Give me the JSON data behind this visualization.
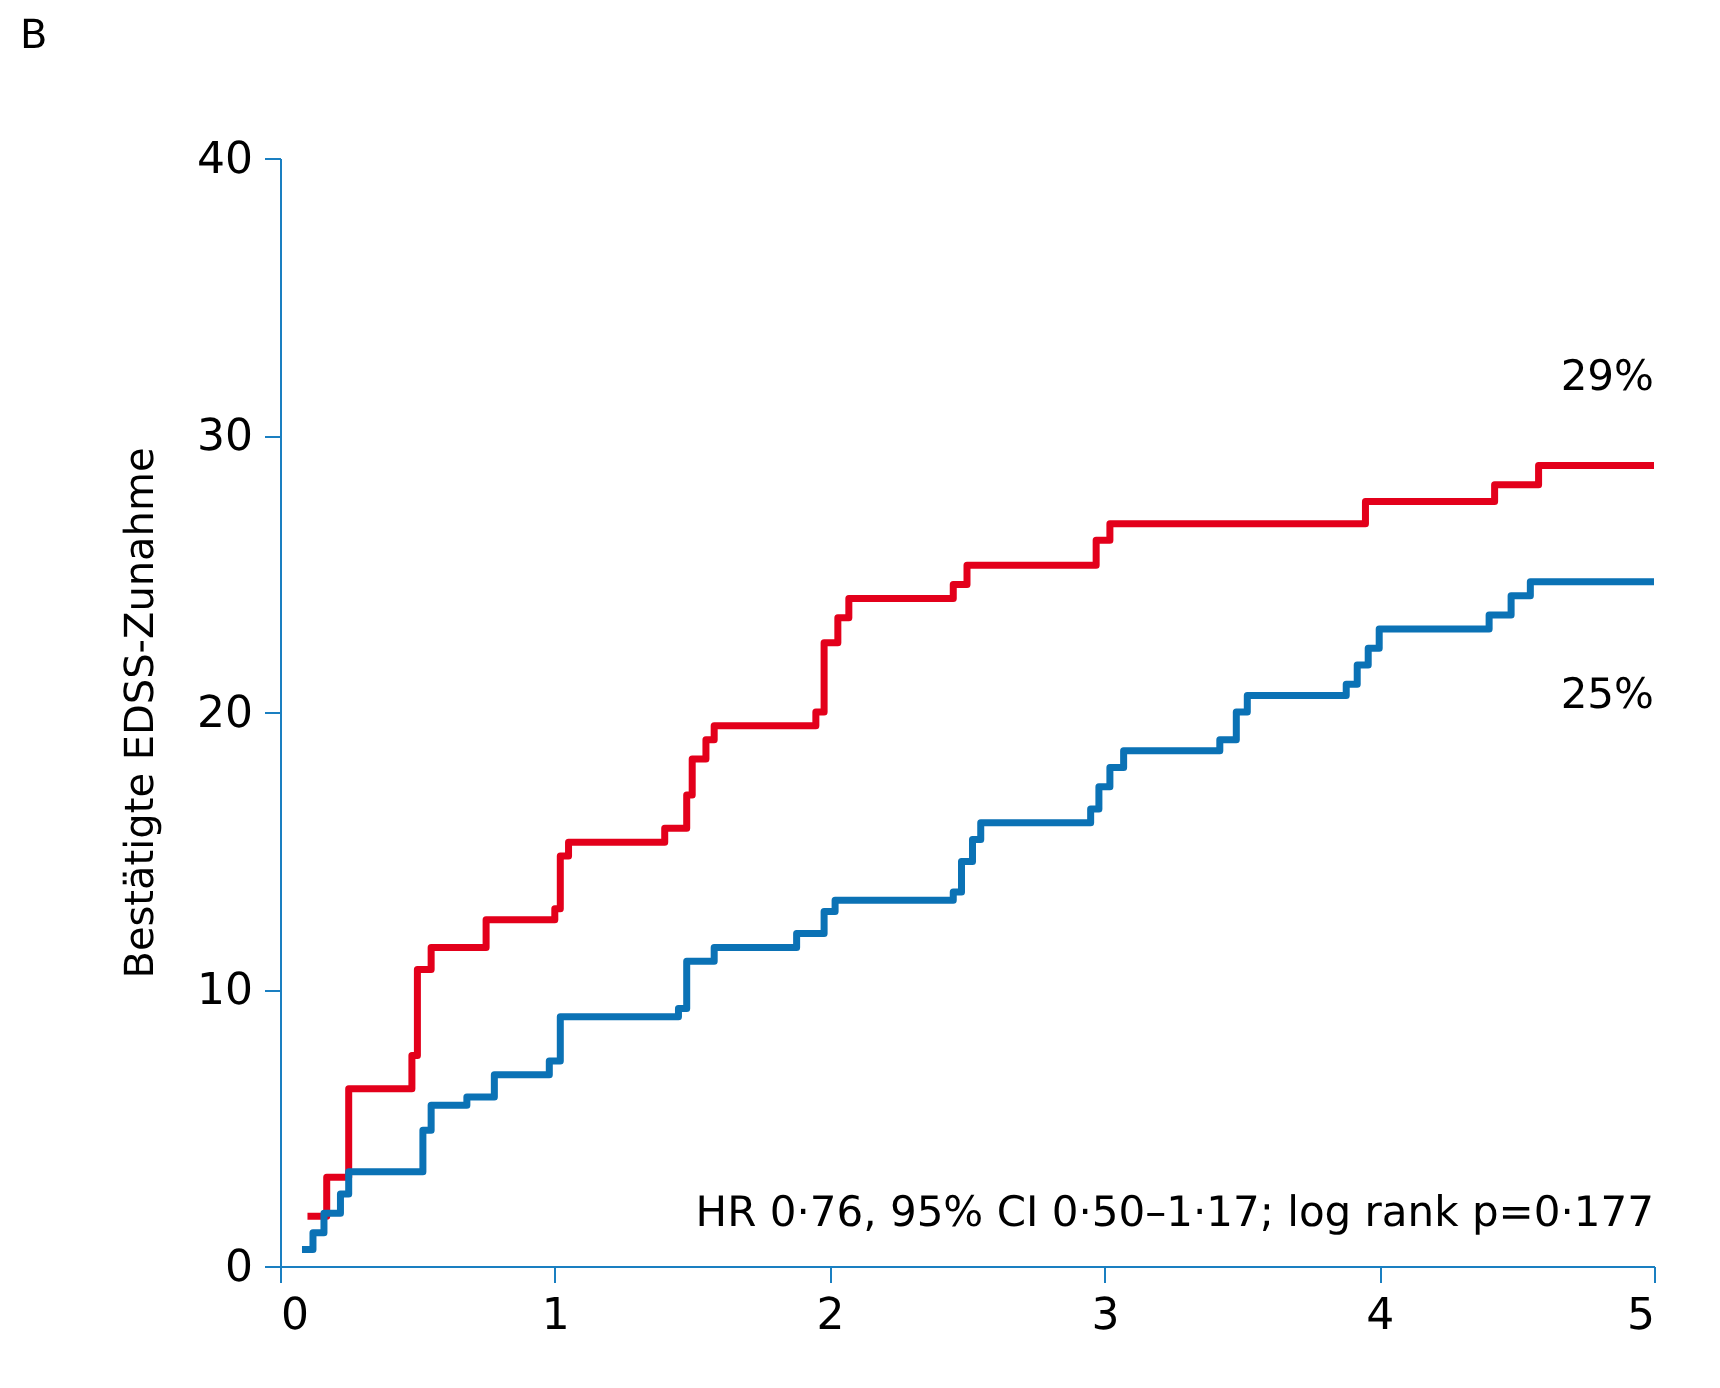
{
  "chart_data": {
    "type": "step",
    "title": "B",
    "ylabel": "Bestätigte EDSS-Zunahme",
    "xlim": [
      0,
      5
    ],
    "xticks": [
      0,
      1,
      2,
      3,
      4,
      5
    ],
    "ylim": [
      0,
      40
    ],
    "yticks": [
      0,
      10,
      20,
      30,
      40
    ],
    "grid": false,
    "line_style": "solid",
    "marker": "none",
    "series": [
      {
        "color": "#e3001b",
        "x": [
          0.1,
          0.17,
          0.25,
          0.48,
          0.5,
          0.55,
          0.7,
          0.75,
          1.0,
          1.02,
          1.05,
          1.4,
          1.48,
          1.5,
          1.55,
          1.58,
          1.95,
          1.98,
          2.03,
          2.07,
          2.45,
          2.5,
          2.97,
          3.02,
          3.95,
          4.42,
          4.58,
          5.0
        ],
        "values": [
          1.8,
          3.2,
          6.4,
          7.6,
          10.7,
          11.5,
          11.5,
          12.5,
          12.9,
          14.8,
          15.3,
          15.8,
          17.0,
          18.3,
          19.0,
          19.5,
          20.0,
          22.5,
          23.4,
          24.1,
          24.6,
          25.3,
          26.2,
          26.8,
          27.6,
          28.2,
          28.9,
          28.9
        ]
      },
      {
        "color": "#0b72b5",
        "x": [
          0.08,
          0.12,
          0.16,
          0.22,
          0.25,
          0.52,
          0.55,
          0.68,
          0.78,
          0.98,
          1.02,
          1.45,
          1.48,
          1.58,
          1.88,
          1.98,
          2.02,
          2.45,
          2.48,
          2.52,
          2.55,
          2.95,
          2.98,
          3.02,
          3.07,
          3.42,
          3.48,
          3.52,
          3.88,
          3.92,
          3.96,
          4.0,
          4.4,
          4.48,
          4.55,
          5.0
        ],
        "values": [
          0.6,
          1.2,
          1.9,
          2.6,
          3.4,
          4.9,
          5.8,
          6.1,
          6.9,
          7.4,
          9.0,
          9.3,
          11.0,
          11.5,
          12.0,
          12.8,
          13.2,
          13.5,
          14.6,
          15.4,
          16.0,
          16.5,
          17.3,
          18.0,
          18.6,
          19.0,
          20.0,
          20.6,
          21.0,
          21.7,
          22.3,
          23.0,
          23.5,
          24.2,
          24.7,
          24.7
        ]
      }
    ],
    "annotations": [
      "29%",
      "25%",
      "HR 0·76, 95% CI 0·50–1·17; log rank p=0·177"
    ]
  }
}
